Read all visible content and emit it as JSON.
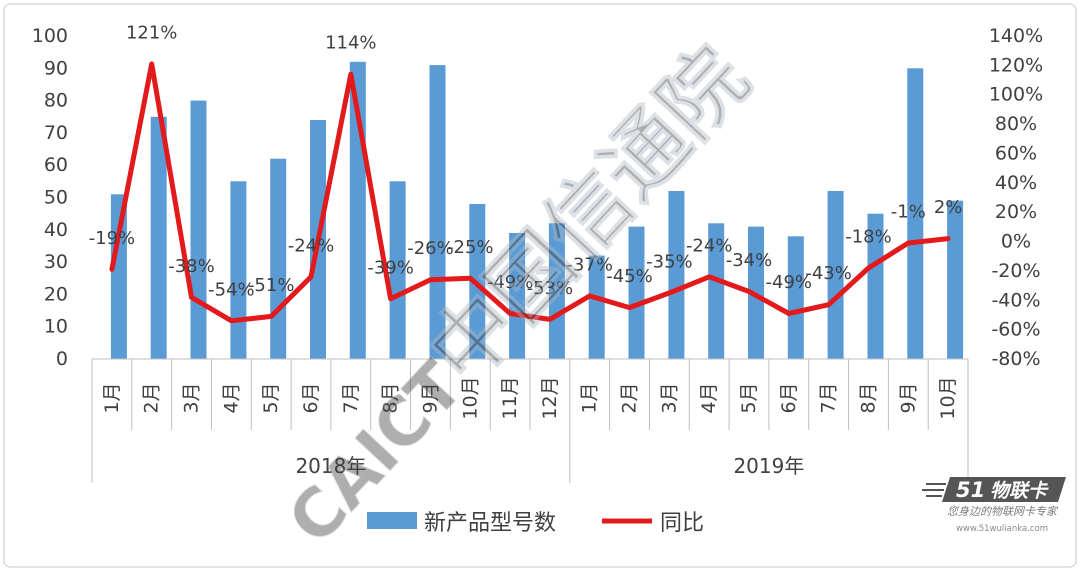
{
  "chart_data": {
    "type": "bar",
    "category_groups": [
      {
        "label": "2018年",
        "categories": [
          "1月",
          "2月",
          "3月",
          "4月",
          "5月",
          "6月",
          "7月",
          "8月",
          "9月",
          "10月",
          "11月",
          "12月"
        ]
      },
      {
        "label": "2019年",
        "categories": [
          "1月",
          "2月",
          "3月",
          "4月",
          "5月",
          "6月",
          "7月",
          "8月",
          "9月",
          "10月"
        ]
      }
    ],
    "ylim": [
      0,
      100
    ],
    "yticks": [
      0,
      10,
      20,
      30,
      40,
      50,
      60,
      70,
      80,
      90,
      100
    ],
    "y2lim": [
      -80,
      140
    ],
    "y2ticks": [
      -80,
      -60,
      -40,
      -20,
      0,
      20,
      40,
      60,
      80,
      100,
      120,
      140
    ],
    "y2tick_labels": [
      "-80%",
      "-60%",
      "-40%",
      "-20%",
      "0%",
      "20%",
      "40%",
      "60%",
      "80%",
      "100%",
      "120%",
      "140%"
    ],
    "grid": false,
    "legend": "bottom",
    "series": [
      {
        "name": "新产品型号数",
        "type": "bar",
        "axis": "left",
        "color": "#5B9BD5",
        "values": [
          51,
          75,
          80,
          55,
          62,
          74,
          92,
          55,
          91,
          48,
          39,
          42,
          32,
          41,
          52,
          42,
          41,
          38,
          52,
          45,
          90,
          49
        ]
      },
      {
        "name": "同比",
        "type": "line",
        "axis": "right",
        "color": "#E31A1C",
        "values": [
          -19,
          121,
          -38,
          -54,
          -51,
          -24,
          114,
          -39,
          -26,
          -25,
          -49,
          -53,
          -37,
          -45,
          -35,
          -24,
          -34,
          -49,
          -43,
          -18,
          -1,
          2
        ],
        "data_labels": [
          "-19%",
          "121%",
          "-38%",
          "-54%",
          "-51%",
          "-24%",
          "114%",
          "-39%",
          "-26%",
          "-25%",
          "-49%",
          "-53%",
          "-37%",
          "-45%",
          "-35%",
          "-24%",
          "-34%",
          "-49%",
          "-43%",
          "-18%",
          "-1%",
          "2%"
        ]
      }
    ]
  },
  "watermark": {
    "latin": "CAICT",
    "cjk": "中国信通院"
  },
  "logo": {
    "number": "51",
    "name": "物联卡",
    "slogan": "您身边的物联网卡专家",
    "url": "www.51wulianka.com",
    "bg_color": "#555555"
  }
}
